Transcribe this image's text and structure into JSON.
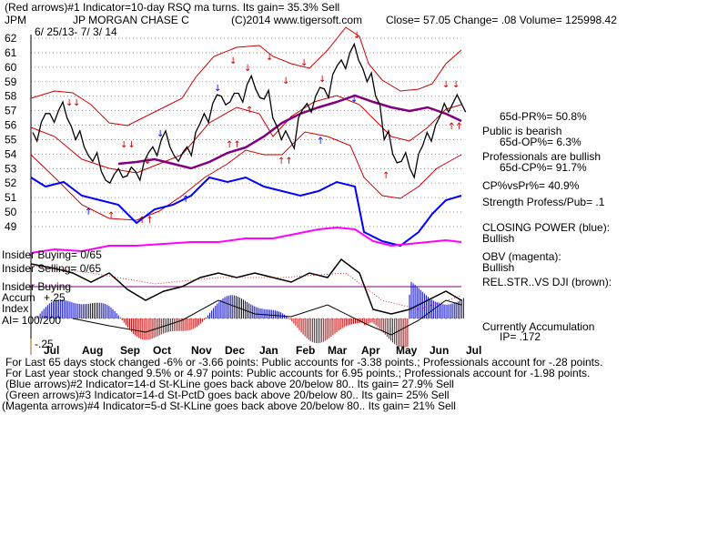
{
  "header": {
    "line1": "(Red arrows)#1 Indicator=10-day RSQ ma turns.  Its gain= 35.3% Sell",
    "symbol": "JPM",
    "company": "JP MORGAN CHASE C",
    "copyright": "(C)2014 www.tigersoft.com",
    "quote": "Close=  57.05  Change= .08 Volume= 125998.42",
    "dates": "6/ 25/13-  7/ 3/ 14"
  },
  "right_panel": {
    "pr": "65d-PR%= 50.8%",
    "public_status": "Public is bearish",
    "op": "65d-OP%= 6.3%",
    "prof_status": "Professionals are bullish",
    "cp": "65d-CP%= 91.7%",
    "cpvspr": "CP%vsPr%=  40.9%",
    "strength": "Strength Profess/Pub= .1",
    "closing_power": "CLOSING POWER (blue):",
    "closing_power_val": "Bullish",
    "obv": "OBV (magenta):",
    "obv_val": "Bullish",
    "relstr": "REL.STR..VS DJI (brown):",
    "accum": "Currently Accumulation",
    "ip": "IP=  .172"
  },
  "left_panel": {
    "insider_buying": "Insider Buying= 0/65",
    "insider_selling": "Insider Selling= 0/65",
    "insider_buying2": "Insider Buying",
    "accum": "Accum",
    "plus25": "+.25",
    "index": "Index",
    "ai": "AI= 100/200",
    "minus25": "-.25"
  },
  "footer": {
    "line1": "For Last 65 days stock changed -6% or -3.66 points:  Public accounts for -3.38 points.;  Professionals account for -.28 points.",
    "line2": "For Last year stock changed  9.5% or  4.97 points:  Public accounts for  6.95 points.;  Professionals account for -1.98 points.",
    "line3": "(Blue arrows)#2 Indicator=14-d St-KLine goes back above 20/below 80..  Its gain= 27.9% Sell",
    "line4": "(Green arrows)#3 Indicator=14-d St-PctD goes back above 20/below 80..  Its gain= 25% Sell",
    "line5": "(Magenta arrows)#4 Indicator=5-d St-KLine goes back above 20/below 80..  Its gain= 21% Sell"
  },
  "chart_data": {
    "type": "line",
    "ylim": [
      49,
      62
    ],
    "y_ticks": [
      "62",
      "61",
      "60",
      "59",
      "58",
      "57",
      "56",
      "55",
      "54",
      "53",
      "52",
      "51",
      "50",
      "49"
    ],
    "months": [
      "Jul",
      "Aug",
      "Sep",
      "Oct",
      "Nov",
      "Dec",
      "Jan",
      "Feb",
      "Mar",
      "Apr",
      "May",
      "Jun",
      "Jul"
    ],
    "price": [
      55.5,
      56.2,
      56.8,
      57.0,
      56.5,
      55.0,
      54.5,
      53.5,
      52.8,
      52.0,
      53.0,
      52.5,
      52.8,
      53.5,
      54.5,
      55.0,
      54.5,
      53.5,
      54.5,
      55.5,
      56.8,
      57.5,
      58.0,
      57.6,
      58.2,
      58.8,
      58.5,
      57.8,
      56.5,
      55.0,
      55.0,
      56.5,
      57.5,
      58.0,
      58.5,
      59.5,
      60.5,
      61.0,
      60.5,
      59.0,
      58.0,
      55.0,
      54.0,
      53.5,
      53.0,
      54.0,
      55.5,
      56.0,
      57.5,
      57.5,
      57.5
    ],
    "colors": {
      "price": "#000000",
      "closing_power": "#0000ff",
      "obv": "#ff00ff",
      "rel_strength": "#800080",
      "bands": "#cc0000",
      "accum_pos": "#0000cc",
      "accum_neg": "#cc0000",
      "grid": "#808080"
    }
  }
}
